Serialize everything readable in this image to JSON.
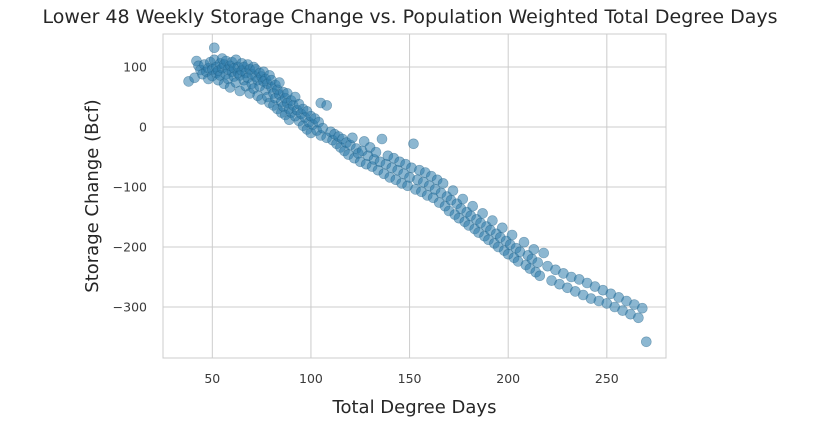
{
  "chart_data": {
    "type": "scatter",
    "title": "Lower 48 Weekly Storage Change vs. Population Weighted Total Degree Days",
    "xlabel": "Total Degree Days",
    "ylabel": "Storage Change (Bcf)",
    "xlim": [
      25,
      280
    ],
    "ylim": [
      -385,
      155
    ],
    "xticks": [
      50,
      100,
      150,
      200,
      250
    ],
    "yticks": [
      100,
      0,
      -100,
      -200,
      -300
    ],
    "xtick_labels": [
      "50",
      "100",
      "150",
      "200",
      "250"
    ],
    "ytick_labels": [
      "100",
      "0",
      "−100",
      "−200",
      "−300"
    ],
    "grid": true,
    "legend": "none",
    "colors": {
      "point": "#2e7bab",
      "grid": "#cccccc",
      "frame": "#cccccc"
    },
    "series": [
      {
        "points": [
          [
            38,
            76
          ],
          [
            41,
            82
          ],
          [
            42,
            110
          ],
          [
            43,
            102
          ],
          [
            44,
            95
          ],
          [
            45,
            88
          ],
          [
            46,
            104
          ],
          [
            47,
            92
          ],
          [
            48,
            98
          ],
          [
            48,
            80
          ],
          [
            49,
            108
          ],
          [
            50,
            85
          ],
          [
            50,
            96
          ],
          [
            51,
            132
          ],
          [
            51,
            112
          ],
          [
            52,
            90
          ],
          [
            52,
            100
          ],
          [
            53,
            78
          ],
          [
            53,
            94
          ],
          [
            54,
            106
          ],
          [
            54,
            86
          ],
          [
            55,
            114
          ],
          [
            55,
            98
          ],
          [
            56,
            72
          ],
          [
            56,
            104
          ],
          [
            57,
            88
          ],
          [
            57,
            110
          ],
          [
            58,
            96
          ],
          [
            58,
            80
          ],
          [
            59,
            102
          ],
          [
            59,
            66
          ],
          [
            60,
            92
          ],
          [
            60,
            108
          ],
          [
            61,
            84
          ],
          [
            61,
            98
          ],
          [
            62,
            74
          ],
          [
            62,
            112
          ],
          [
            63,
            90
          ],
          [
            63,
            100
          ],
          [
            64,
            60
          ],
          [
            64,
            86
          ],
          [
            65,
            106
          ],
          [
            65,
            94
          ],
          [
            66,
            78
          ],
          [
            66,
            100
          ],
          [
            67,
            68
          ],
          [
            67,
            90
          ],
          [
            68,
            104
          ],
          [
            68,
            82
          ],
          [
            69,
            96
          ],
          [
            69,
            56
          ],
          [
            70,
            88
          ],
          [
            70,
            72
          ],
          [
            71,
            100
          ],
          [
            71,
            64
          ],
          [
            72,
            84
          ],
          [
            72,
            96
          ],
          [
            73,
            52
          ],
          [
            73,
            78
          ],
          [
            74,
            90
          ],
          [
            74,
            68
          ],
          [
            75,
            84
          ],
          [
            75,
            46
          ],
          [
            76,
            76
          ],
          [
            76,
            92
          ],
          [
            77,
            62
          ],
          [
            77,
            80
          ],
          [
            78,
            50
          ],
          [
            78,
            72
          ],
          [
            79,
            86
          ],
          [
            79,
            40
          ],
          [
            80,
            66
          ],
          [
            80,
            78
          ],
          [
            81,
            56
          ],
          [
            81,
            36
          ],
          [
            82,
            70
          ],
          [
            82,
            48
          ],
          [
            83,
            30
          ],
          [
            83,
            62
          ],
          [
            84,
            54
          ],
          [
            84,
            74
          ],
          [
            85,
            42
          ],
          [
            85,
            24
          ],
          [
            86,
            58
          ],
          [
            86,
            34
          ],
          [
            87,
            48
          ],
          [
            87,
            20
          ],
          [
            88,
            40
          ],
          [
            88,
            56
          ],
          [
            89,
            30
          ],
          [
            89,
            12
          ],
          [
            90,
            44
          ],
          [
            90,
            24
          ],
          [
            91,
            36
          ],
          [
            92,
            18
          ],
          [
            92,
            50
          ],
          [
            93,
            28
          ],
          [
            94,
            38
          ],
          [
            94,
            10
          ],
          [
            95,
            22
          ],
          [
            96,
            30
          ],
          [
            96,
            2
          ],
          [
            97,
            16
          ],
          [
            98,
            26
          ],
          [
            98,
            -4
          ],
          [
            99,
            8
          ],
          [
            100,
            18
          ],
          [
            100,
            -10
          ],
          [
            101,
            4
          ],
          [
            102,
            14
          ],
          [
            103,
            -6
          ],
          [
            104,
            8
          ],
          [
            105,
            -14
          ],
          [
            105,
            40
          ],
          [
            106,
            -2
          ],
          [
            108,
            36
          ],
          [
            108,
            -18
          ],
          [
            110,
            -8
          ],
          [
            111,
            -22
          ],
          [
            112,
            -12
          ],
          [
            113,
            -28
          ],
          [
            114,
            -16
          ],
          [
            115,
            -34
          ],
          [
            116,
            -20
          ],
          [
            117,
            -40
          ],
          [
            118,
            -26
          ],
          [
            119,
            -46
          ],
          [
            120,
            -30
          ],
          [
            121,
            -18
          ],
          [
            122,
            -52
          ],
          [
            123,
            -36
          ],
          [
            124,
            -44
          ],
          [
            125,
            -58
          ],
          [
            126,
            -40
          ],
          [
            127,
            -24
          ],
          [
            128,
            -62
          ],
          [
            129,
            -48
          ],
          [
            130,
            -34
          ],
          [
            131,
            -66
          ],
          [
            132,
            -54
          ],
          [
            133,
            -42
          ],
          [
            134,
            -72
          ],
          [
            135,
            -58
          ],
          [
            136,
            -20
          ],
          [
            137,
            -78
          ],
          [
            138,
            -62
          ],
          [
            139,
            -48
          ],
          [
            140,
            -84
          ],
          [
            141,
            -68
          ],
          [
            142,
            -52
          ],
          [
            143,
            -88
          ],
          [
            144,
            -72
          ],
          [
            145,
            -58
          ],
          [
            146,
            -94
          ],
          [
            147,
            -78
          ],
          [
            148,
            -62
          ],
          [
            149,
            -98
          ],
          [
            150,
            -84
          ],
          [
            151,
            -68
          ],
          [
            152,
            -28
          ],
          [
            153,
            -104
          ],
          [
            154,
            -88
          ],
          [
            155,
            -72
          ],
          [
            156,
            -108
          ],
          [
            157,
            -92
          ],
          [
            158,
            -76
          ],
          [
            159,
            -114
          ],
          [
            160,
            -98
          ],
          [
            161,
            -82
          ],
          [
            162,
            -118
          ],
          [
            163,
            -104
          ],
          [
            164,
            -88
          ],
          [
            165,
            -126
          ],
          [
            166,
            -110
          ],
          [
            167,
            -94
          ],
          [
            168,
            -132
          ],
          [
            169,
            -116
          ],
          [
            170,
            -140
          ],
          [
            171,
            -122
          ],
          [
            172,
            -106
          ],
          [
            173,
            -146
          ],
          [
            174,
            -128
          ],
          [
            175,
            -152
          ],
          [
            176,
            -136
          ],
          [
            177,
            -120
          ],
          [
            178,
            -158
          ],
          [
            179,
            -142
          ],
          [
            180,
            -164
          ],
          [
            181,
            -148
          ],
          [
            182,
            -132
          ],
          [
            183,
            -170
          ],
          [
            184,
            -154
          ],
          [
            185,
            -176
          ],
          [
            186,
            -160
          ],
          [
            187,
            -144
          ],
          [
            188,
            -182
          ],
          [
            189,
            -166
          ],
          [
            190,
            -188
          ],
          [
            191,
            -172
          ],
          [
            192,
            -156
          ],
          [
            193,
            -194
          ],
          [
            194,
            -178
          ],
          [
            195,
            -200
          ],
          [
            196,
            -184
          ],
          [
            197,
            -168
          ],
          [
            198,
            -206
          ],
          [
            199,
            -190
          ],
          [
            200,
            -212
          ],
          [
            201,
            -196
          ],
          [
            202,
            -180
          ],
          [
            203,
            -218
          ],
          [
            204,
            -202
          ],
          [
            205,
            -224
          ],
          [
            206,
            -208
          ],
          [
            208,
            -192
          ],
          [
            209,
            -230
          ],
          [
            210,
            -214
          ],
          [
            211,
            -236
          ],
          [
            212,
            -220
          ],
          [
            213,
            -204
          ],
          [
            214,
            -242
          ],
          [
            215,
            -226
          ],
          [
            216,
            -248
          ],
          [
            218,
            -210
          ],
          [
            220,
            -232
          ],
          [
            222,
            -256
          ],
          [
            224,
            -238
          ],
          [
            226,
            -262
          ],
          [
            228,
            -244
          ],
          [
            230,
            -268
          ],
          [
            232,
            -250
          ],
          [
            234,
            -274
          ],
          [
            236,
            -254
          ],
          [
            238,
            -280
          ],
          [
            240,
            -260
          ],
          [
            242,
            -286
          ],
          [
            244,
            -266
          ],
          [
            246,
            -290
          ],
          [
            248,
            -272
          ],
          [
            250,
            -294
          ],
          [
            252,
            -278
          ],
          [
            254,
            -300
          ],
          [
            256,
            -284
          ],
          [
            258,
            -306
          ],
          [
            260,
            -290
          ],
          [
            262,
            -312
          ],
          [
            264,
            -296
          ],
          [
            266,
            -318
          ],
          [
            268,
            -302
          ],
          [
            270,
            -358
          ]
        ]
      }
    ]
  }
}
